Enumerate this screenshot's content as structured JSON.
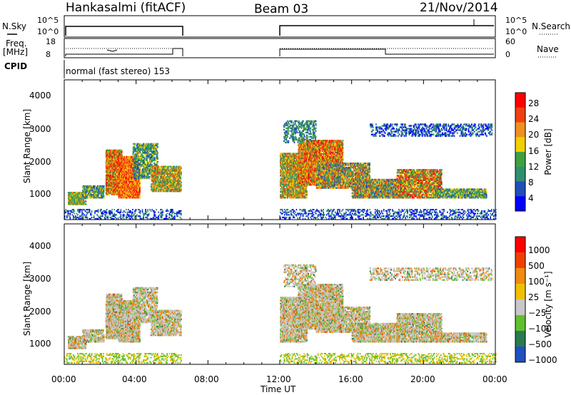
{
  "header": {
    "station": "Hankasalmi (fitACF)",
    "beam": "Beam 03",
    "date": "21/Nov/2014"
  },
  "status_panels": {
    "nsky_label": "N.Sky",
    "nsky_ticks": [
      "10^5",
      "10^0"
    ],
    "nsearch_label": "N.Search",
    "nsearch_ticks": [
      "10^5",
      "10^0"
    ],
    "freq_label_1": "Freq.",
    "freq_label_2": "[MHz]",
    "freq_ticks": [
      "18",
      "8"
    ],
    "nave_label": "Nave",
    "nave_ticks": [
      "60",
      "0"
    ],
    "cpid_label": "CPID",
    "cpid_text": "normal (fast stereo) 153"
  },
  "colors": {
    "power": [
      "#0000ff",
      "#1f4fb8",
      "#2f8f6f",
      "#40a040",
      "#f0d000",
      "#f09020",
      "#f04010",
      "#ff0000"
    ],
    "velocity": [
      "#2050c0",
      "#2a7a50",
      "#60c030",
      "#c8c8c8",
      "#f0c000",
      "#f08a10",
      "#f04000",
      "#ff0000"
    ],
    "axis": "#000000"
  },
  "chart_data": [
    {
      "type": "heatmap",
      "name": "power",
      "xlabel": "",
      "ylabel": "Slant Range [km]",
      "yticks": [
        "1000",
        "2000",
        "3000",
        "4000"
      ],
      "xlim": [
        0,
        24
      ],
      "ylim": [
        200,
        4500
      ],
      "colorbar": {
        "label": "Power [dB]",
        "ticks": [
          "4",
          "8",
          "12",
          "16",
          "20",
          "24",
          "28"
        ]
      },
      "data_gap": [
        6.5,
        12
      ]
    },
    {
      "type": "heatmap",
      "name": "velocity",
      "xlabel": "Time UT",
      "ylabel": "Slant Range [km]",
      "yticks": [
        "1000",
        "2000",
        "3000",
        "4000"
      ],
      "xticks": [
        "00:00",
        "04:00",
        "08:00",
        "12:00",
        "16:00",
        "20:00",
        "00:00"
      ],
      "xlim": [
        0,
        24
      ],
      "ylim": [
        200,
        4500
      ],
      "colorbar": {
        "label": "Velocity [m s⁻¹]",
        "ticks": [
          "1000",
          "500",
          "100",
          "25",
          "−25",
          "−100",
          "−500",
          "−1000"
        ]
      },
      "data_gap": [
        6.5,
        12
      ]
    }
  ]
}
